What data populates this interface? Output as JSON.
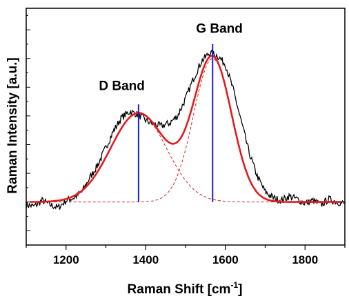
{
  "chart_data": {
    "type": "line",
    "title": "",
    "xlabel": "Raman Shift [cm",
    "xlabel_superscript": "-1",
    "xlabel_suffix": "]",
    "ylabel": "Raman Intensity [a.u.]",
    "xlim": [
      1100,
      1900
    ],
    "ylim": [
      -0.3,
      1.35
    ],
    "x_ticks": [
      1200,
      1400,
      1600,
      1800
    ],
    "y_ticks_labeled": false,
    "grid": false,
    "baseline": 0,
    "colors": {
      "spectrum": "#000000",
      "fit": "#e41a1c",
      "components": "#e41a1c",
      "markers": "#1a1adc"
    },
    "bands": [
      {
        "name": "D Band",
        "center": 1382,
        "height": 0.62,
        "sigma": 70
      },
      {
        "name": "G Band",
        "center": 1568,
        "height": 1.0,
        "sigma": 48
      }
    ],
    "band_markers": [
      {
        "x": 1382,
        "y_top": 0.68
      },
      {
        "x": 1568,
        "y_top": 1.1
      }
    ],
    "annotations": [
      {
        "text": "D Band",
        "x": 1340,
        "y": 0.78
      },
      {
        "text": "G Band",
        "x": 1585,
        "y": 1.18
      }
    ],
    "series": [
      {
        "style": "measured spectrum",
        "x": [
          1100,
          1120,
          1140,
          1160,
          1180,
          1200,
          1220,
          1240,
          1260,
          1280,
          1300,
          1320,
          1340,
          1360,
          1380,
          1400,
          1420,
          1440,
          1460,
          1480,
          1500,
          1520,
          1540,
          1560,
          1580,
          1600,
          1620,
          1640,
          1660,
          1680,
          1700,
          1720,
          1740,
          1760,
          1780,
          1800,
          1820,
          1840,
          1860,
          1880,
          1900
        ],
        "y": [
          -0.02,
          -0.03,
          0.01,
          -0.02,
          -0.04,
          0.01,
          0.03,
          0.07,
          0.17,
          0.26,
          0.38,
          0.5,
          0.59,
          0.63,
          0.61,
          0.57,
          0.54,
          0.53,
          0.55,
          0.6,
          0.72,
          0.86,
          0.98,
          1.04,
          1.02,
          0.96,
          0.78,
          0.56,
          0.34,
          0.18,
          0.07,
          0.03,
          0.01,
          0.04,
          0.02,
          -0.01,
          0.01,
          -0.02,
          0.02,
          0.0,
          -0.01
        ]
      },
      {
        "style": "total fit",
        "x": [
          1100,
          1120,
          1140,
          1160,
          1180,
          1200,
          1220,
          1240,
          1260,
          1280,
          1300,
          1320,
          1340,
          1360,
          1380,
          1400,
          1420,
          1440,
          1460,
          1480,
          1500,
          1520,
          1540,
          1560,
          1580,
          1600,
          1620,
          1640,
          1660,
          1680,
          1700,
          1720,
          1740,
          1760,
          1780,
          1800,
          1820,
          1840,
          1860,
          1880,
          1900
        ],
        "y": [
          0.0,
          0.0,
          0.0,
          0.0,
          0.0,
          0.0,
          0.02,
          0.05,
          0.1,
          0.18,
          0.31,
          0.44,
          0.55,
          0.61,
          0.62,
          0.59,
          0.55,
          0.53,
          0.54,
          0.6,
          0.71,
          0.86,
          0.98,
          1.0,
          0.98,
          0.9,
          0.76,
          0.56,
          0.36,
          0.19,
          0.08,
          0.03,
          0.01,
          0.0,
          0.0,
          0.0,
          0.0,
          0.0,
          0.0,
          0.0,
          0.0
        ]
      }
    ]
  }
}
